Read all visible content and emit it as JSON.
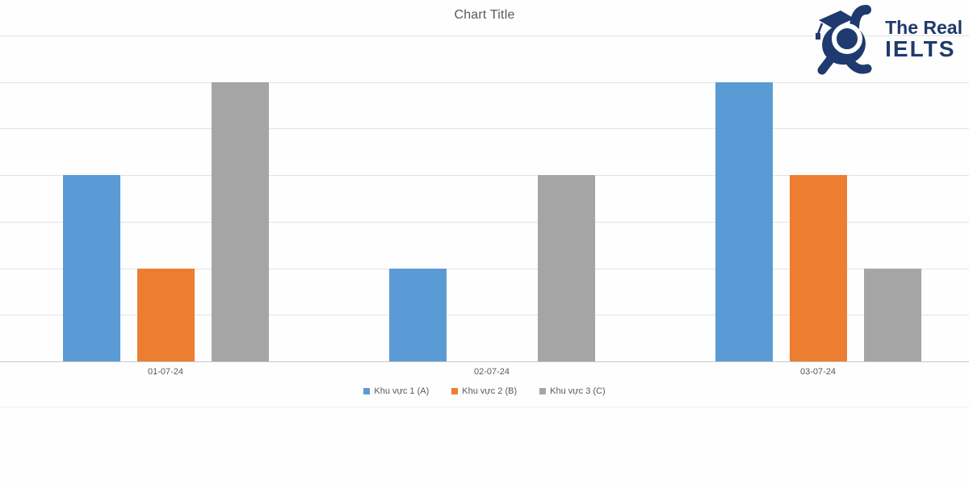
{
  "header": {
    "title": "Chart Title"
  },
  "logo": {
    "line1": "The Real",
    "line2": "IELTS",
    "color": "#1f3a6e",
    "icon": "rabbit-graduate-mascot"
  },
  "chart_data": {
    "type": "bar",
    "title": "Chart Title",
    "categories": [
      "01-07-24",
      "02-07-24",
      "03-07-24"
    ],
    "series": [
      {
        "name": "Khu vực 1 (A)",
        "color": "#5b9bd5",
        "values": [
          4,
          2,
          6
        ]
      },
      {
        "name": "Khu vực 2 (B)",
        "color": "#ed7d31",
        "values": [
          2,
          0,
          4
        ]
      },
      {
        "name": "Khu vực 3 (C)",
        "color": "#a5a5a5",
        "values": [
          6,
          4,
          2
        ]
      }
    ],
    "ylim": [
      0,
      7
    ],
    "grid_step": 1,
    "gridlines": true,
    "y_axis_tick_labels_visible": false,
    "legend_position": "bottom",
    "title_color": "#595959",
    "tick_label_color": "#595959"
  }
}
